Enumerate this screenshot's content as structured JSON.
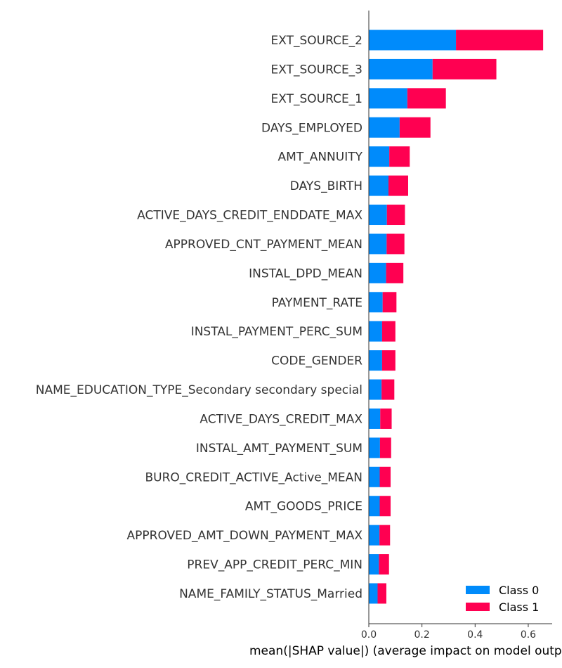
{
  "chart_data": {
    "type": "bar",
    "stacked": true,
    "orientation": "horizontal",
    "title": "",
    "xlabel": "mean(|SHAP value|) (average impact on model output magnitude)",
    "ylabel": "",
    "xlim": [
      0,
      0.69
    ],
    "xticks": [
      "0.0",
      "0.2",
      "0.4",
      "0.6"
    ],
    "grid": false,
    "legend_position": "bottom-right",
    "categories": [
      "EXT_SOURCE_2",
      "EXT_SOURCE_3",
      "EXT_SOURCE_1",
      "DAYS_EMPLOYED",
      "AMT_ANNUITY",
      "DAYS_BIRTH",
      "ACTIVE_DAYS_CREDIT_ENDDATE_MAX",
      "APPROVED_CNT_PAYMENT_MEAN",
      "INSTAL_DPD_MEAN",
      "PAYMENT_RATE",
      "INSTAL_PAYMENT_PERC_SUM",
      "CODE_GENDER",
      "NAME_EDUCATION_TYPE_Secondary  secondary special",
      "ACTIVE_DAYS_CREDIT_MAX",
      "INSTAL_AMT_PAYMENT_SUM",
      "BURO_CREDIT_ACTIVE_Active_MEAN",
      "AMT_GOODS_PRICE",
      "APPROVED_AMT_DOWN_PAYMENT_MAX",
      "PREV_APP_CREDIT_PERC_MIN",
      "NAME_FAMILY_STATUS_Married"
    ],
    "series": [
      {
        "name": "Class 0",
        "color": "#008bfb",
        "values": [
          0.328,
          0.24,
          0.145,
          0.116,
          0.077,
          0.074,
          0.068,
          0.067,
          0.065,
          0.052,
          0.05,
          0.05,
          0.048,
          0.043,
          0.042,
          0.041,
          0.041,
          0.04,
          0.038,
          0.033
        ]
      },
      {
        "name": "Class 1",
        "color": "#ff0051",
        "values": [
          0.328,
          0.24,
          0.145,
          0.116,
          0.077,
          0.074,
          0.068,
          0.067,
          0.065,
          0.052,
          0.05,
          0.05,
          0.048,
          0.043,
          0.042,
          0.041,
          0.041,
          0.04,
          0.038,
          0.033
        ]
      }
    ]
  }
}
